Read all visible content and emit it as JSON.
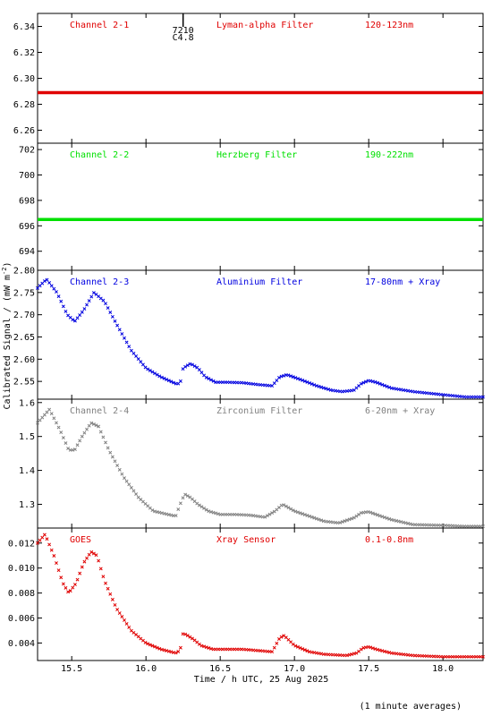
{
  "figure": {
    "ylabel": "Calibrated Signal / (mW m",
    "ylabel_sup": "-2",
    "ylabel_close": ")",
    "xlabel": "Time / h UTC, 25 Aug 2025",
    "footnote": "(1 minute averages)",
    "event_id": "7210",
    "event_class": "C4.8",
    "event_time": 16.25
  },
  "chart_data": [
    {
      "type": "scatter",
      "channel": "Channel 2-1",
      "filter": "Lyman-alpha Filter",
      "band": "120-123nm",
      "color": "#e00000",
      "xlim": [
        15.27,
        18.27
      ],
      "ylim": [
        6.25,
        6.35
      ],
      "yticks": [
        6.26,
        6.28,
        6.3,
        6.32,
        6.34
      ],
      "yticklabels": [
        "6.26",
        "6.28",
        "6.30",
        "6.32",
        "6.34"
      ],
      "x": [
        15.27,
        18.27
      ],
      "y": [
        6.289,
        6.289
      ],
      "flat": true
    },
    {
      "type": "scatter",
      "channel": "Channel 2-2",
      "filter": "Herzberg Filter",
      "band": "190-222nm",
      "color": "#00e000",
      "xlim": [
        15.27,
        18.27
      ],
      "ylim": [
        692.5,
        702.5
      ],
      "yticks": [
        694,
        696,
        698,
        700,
        702
      ],
      "yticklabels": [
        "694",
        "696",
        "698",
        "700",
        "702"
      ],
      "x": [
        15.27,
        18.27
      ],
      "y": [
        696.5,
        696.5
      ],
      "flat": true
    },
    {
      "type": "scatter",
      "channel": "Channel 2-3",
      "filter": "Aluminium Filter",
      "band": "17-80nm + Xray",
      "color": "#0000e0",
      "xlim": [
        15.27,
        18.27
      ],
      "ylim": [
        2.51,
        2.8
      ],
      "yticks": [
        2.55,
        2.6,
        2.65,
        2.7,
        2.75,
        2.8
      ],
      "yticklabels": [
        "2.55",
        "2.60",
        "2.65",
        "2.70",
        "2.75",
        "2.80"
      ],
      "x": [
        15.27,
        15.33,
        15.4,
        15.47,
        15.52,
        15.58,
        15.65,
        15.72,
        15.8,
        15.9,
        16.0,
        16.1,
        16.2,
        16.23,
        16.25,
        16.3,
        16.35,
        16.4,
        16.47,
        16.55,
        16.65,
        16.75,
        16.85,
        16.9,
        16.95,
        17.05,
        17.15,
        17.25,
        17.32,
        17.4,
        17.45,
        17.5,
        17.55,
        17.65,
        17.8,
        18.0,
        18.15,
        18.27
      ],
      "y": [
        2.76,
        2.78,
        2.75,
        2.7,
        2.685,
        2.71,
        2.75,
        2.73,
        2.68,
        2.62,
        2.58,
        2.56,
        2.545,
        2.545,
        2.58,
        2.59,
        2.58,
        2.56,
        2.548,
        2.548,
        2.547,
        2.543,
        2.54,
        2.56,
        2.565,
        2.553,
        2.54,
        2.53,
        2.527,
        2.53,
        2.545,
        2.552,
        2.548,
        2.535,
        2.527,
        2.52,
        2.515,
        2.515
      ]
    },
    {
      "type": "scatter",
      "channel": "Channel 2-4",
      "filter": "Zirconium Filter",
      "band": "6-20nm + Xray",
      "color": "#808080",
      "xlim": [
        15.27,
        18.27
      ],
      "ylim": [
        1.23,
        1.61
      ],
      "yticks": [
        1.3,
        1.4,
        1.5,
        1.6
      ],
      "yticklabels": [
        "1.3",
        "1.4",
        "1.5",
        "1.6"
      ],
      "x": [
        15.27,
        15.35,
        15.42,
        15.48,
        15.52,
        15.57,
        15.63,
        15.68,
        15.75,
        15.85,
        15.95,
        16.05,
        16.15,
        16.2,
        16.23,
        16.26,
        16.3,
        16.35,
        16.42,
        16.5,
        16.6,
        16.7,
        16.8,
        16.87,
        16.92,
        17.0,
        17.1,
        17.2,
        17.3,
        17.4,
        17.45,
        17.5,
        17.55,
        17.65,
        17.8,
        18.0,
        18.15,
        18.27
      ],
      "y": [
        1.54,
        1.58,
        1.52,
        1.46,
        1.46,
        1.5,
        1.54,
        1.53,
        1.46,
        1.38,
        1.32,
        1.28,
        1.27,
        1.265,
        1.3,
        1.33,
        1.32,
        1.3,
        1.28,
        1.27,
        1.27,
        1.268,
        1.262,
        1.28,
        1.3,
        1.28,
        1.265,
        1.25,
        1.245,
        1.26,
        1.275,
        1.278,
        1.27,
        1.255,
        1.24,
        1.238,
        1.235,
        1.235
      ]
    },
    {
      "type": "scatter",
      "channel": "GOES",
      "filter": "Xray Sensor",
      "band": "0.1-0.8nm",
      "color": "#e00000",
      "xlim": [
        15.27,
        18.27
      ],
      "ylim": [
        0.0026,
        0.0132
      ],
      "yticks": [
        0.004,
        0.006,
        0.008,
        0.01,
        0.012
      ],
      "yticklabels": [
        "0.004",
        "0.006",
        "0.008",
        "0.010",
        "0.012"
      ],
      "x": [
        15.27,
        15.32,
        15.38,
        15.44,
        15.48,
        15.53,
        15.58,
        15.63,
        15.67,
        15.72,
        15.8,
        15.9,
        16.0,
        16.1,
        16.2,
        16.23,
        16.25,
        16.28,
        16.32,
        16.37,
        16.45,
        16.55,
        16.65,
        16.75,
        16.85,
        16.9,
        16.93,
        17.0,
        17.1,
        17.2,
        17.35,
        17.42,
        17.46,
        17.5,
        17.55,
        17.65,
        17.8,
        18.0,
        18.15,
        18.27
      ],
      "y": [
        0.012,
        0.0127,
        0.011,
        0.0088,
        0.008,
        0.0088,
        0.0104,
        0.0113,
        0.011,
        0.009,
        0.0068,
        0.005,
        0.004,
        0.0035,
        0.0032,
        0.0034,
        0.0048,
        0.0046,
        0.0043,
        0.0038,
        0.0035,
        0.0035,
        0.0035,
        0.0034,
        0.0033,
        0.0044,
        0.0046,
        0.0038,
        0.0033,
        0.0031,
        0.003,
        0.0032,
        0.0036,
        0.0037,
        0.0035,
        0.0032,
        0.003,
        0.0029,
        0.0029,
        0.0029
      ]
    }
  ],
  "xaxis": {
    "ticks": [
      15.5,
      16.0,
      16.5,
      17.0,
      17.5,
      18.0
    ],
    "ticklabels": [
      "15.5",
      "16.0",
      "16.5",
      "17.0",
      "17.5",
      "18.0"
    ]
  }
}
